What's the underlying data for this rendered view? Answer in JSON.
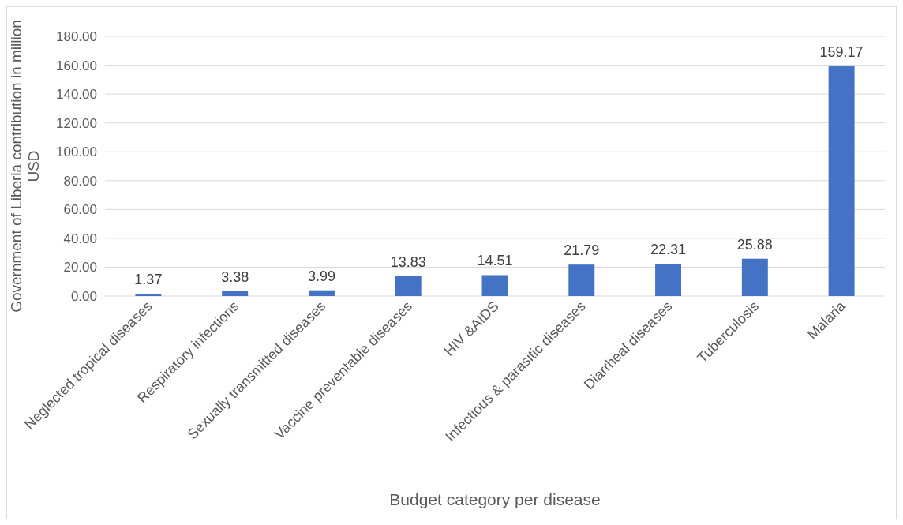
{
  "chart_data": {
    "type": "bar",
    "xlabel": "Budget category per disease",
    "ylabel": "Government of Liberia contribution in million USD",
    "categories": [
      "Neglected tropical diseases",
      "Respiratory infections",
      "Sexually transmitted diseases",
      "Vaccine preventable diseases",
      "HIV &AIDS",
      "Infectious & parasitic diseases",
      "Diarrheal diseases",
      "Tuberculosis",
      "Malaria"
    ],
    "values": [
      1.37,
      3.38,
      3.99,
      13.83,
      14.51,
      21.79,
      22.31,
      25.88,
      159.17
    ],
    "color": "#4472c4",
    "data_labels": true,
    "grid": "y",
    "ylim": [
      0,
      180
    ],
    "yticks": [
      {
        "value": 0,
        "label": "0.00"
      },
      {
        "value": 20,
        "label": "20.00"
      },
      {
        "value": 40,
        "label": "40.00"
      },
      {
        "value": 60,
        "label": "60.00"
      },
      {
        "value": 80,
        "label": "80.00"
      },
      {
        "value": 100,
        "label": "100.00"
      },
      {
        "value": 120,
        "label": "120.00"
      },
      {
        "value": 140,
        "label": "140.00"
      },
      {
        "value": 160,
        "label": "160.00"
      },
      {
        "value": 180,
        "label": "180.00"
      }
    ]
  }
}
